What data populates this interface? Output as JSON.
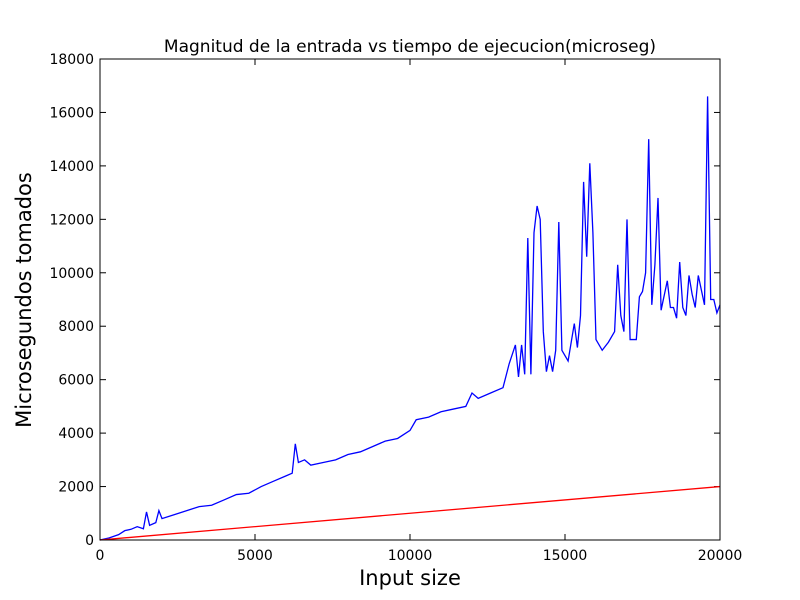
{
  "chart_data": {
    "type": "line",
    "title": "Magnitud de la entrada vs tiempo de ejecucion(microseg)",
    "xlabel": "Input size",
    "ylabel": "Microsegundos tomados",
    "xlim": [
      0,
      20000
    ],
    "ylim": [
      0,
      18000
    ],
    "xticks": [
      0,
      5000,
      10000,
      15000,
      20000
    ],
    "yticks": [
      0,
      2000,
      4000,
      6000,
      8000,
      10000,
      12000,
      14000,
      16000,
      18000
    ],
    "grid": false,
    "series": [
      {
        "color": "#0000ff",
        "x": [
          0,
          300,
          600,
          800,
          1000,
          1200,
          1400,
          1500,
          1600,
          1800,
          1900,
          2000,
          2400,
          2800,
          3200,
          3600,
          4000,
          4400,
          4800,
          5200,
          5600,
          6000,
          6200,
          6300,
          6400,
          6600,
          6800,
          7200,
          7600,
          8000,
          8400,
          8800,
          9200,
          9600,
          10000,
          10200,
          10600,
          11000,
          11400,
          11800,
          12000,
          12200,
          12600,
          13000,
          13200,
          13400,
          13500,
          13600,
          13700,
          13800,
          13900,
          14000,
          14100,
          14200,
          14300,
          14400,
          14500,
          14600,
          14700,
          14800,
          14900,
          15100,
          15300,
          15400,
          15500,
          15600,
          15700,
          15800,
          15900,
          16000,
          16200,
          16400,
          16600,
          16700,
          16800,
          16900,
          17000,
          17100,
          17300,
          17400,
          17500,
          17600,
          17700,
          17800,
          17900,
          18000,
          18100,
          18300,
          18400,
          18500,
          18600,
          18700,
          18800,
          18900,
          19000,
          19100,
          19200,
          19300,
          19500,
          19600,
          19700,
          19800,
          19900,
          20000
        ],
        "values": [
          0,
          80,
          200,
          350,
          400,
          500,
          420,
          1050,
          550,
          650,
          1100,
          800,
          950,
          1100,
          1250,
          1300,
          1500,
          1700,
          1750,
          2000,
          2200,
          2400,
          2500,
          3600,
          2900,
          3000,
          2800,
          2900,
          3000,
          3200,
          3300,
          3500,
          3700,
          3800,
          4100,
          4500,
          4600,
          4800,
          4900,
          5000,
          5500,
          5300,
          5500,
          5700,
          6600,
          7300,
          6100,
          7300,
          6200,
          11300,
          6200,
          11500,
          12500,
          12000,
          7800,
          6300,
          6900,
          6300,
          7100,
          11900,
          7100,
          6700,
          8100,
          7200,
          8400,
          13400,
          10600,
          14100,
          11500,
          7500,
          7100,
          7400,
          7800,
          10300,
          8400,
          7800,
          12000,
          7500,
          7500,
          9100,
          9300,
          10000,
          15000,
          8800,
          10300,
          12800,
          8600,
          9700,
          8700,
          8700,
          8300,
          10400,
          8700,
          8400,
          9900,
          9200,
          8700,
          9900,
          8800,
          16600,
          9000,
          9000,
          8500,
          8800
        ]
      },
      {
        "color": "#ff0000",
        "x": [
          0,
          20000
        ],
        "values": [
          0,
          2000
        ]
      }
    ]
  }
}
